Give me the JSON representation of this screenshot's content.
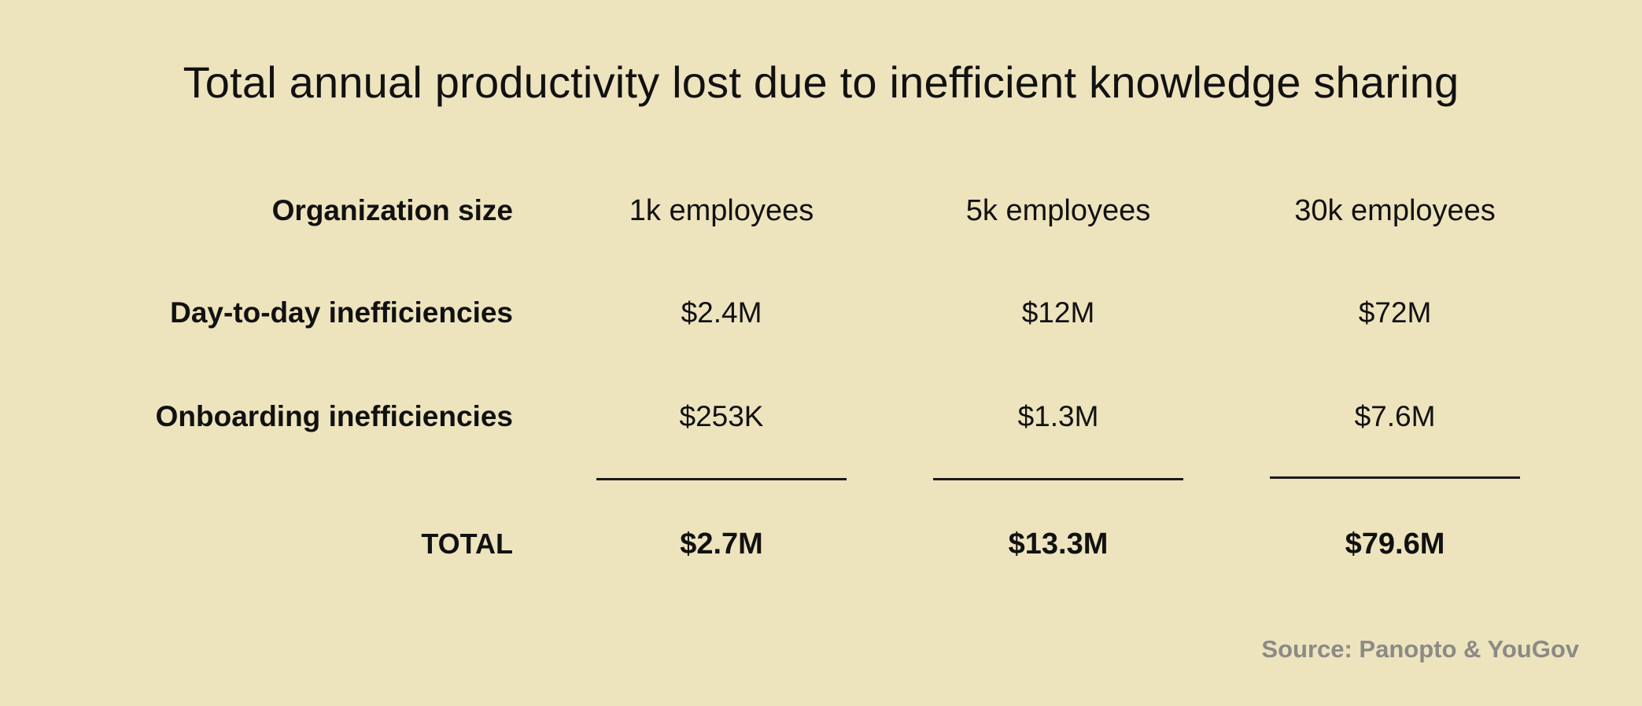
{
  "chart_data": {
    "type": "table",
    "title": "Total annual productivity lost due to inefficient knowledge sharing",
    "header": {
      "label": "Organization size",
      "columns": [
        "1k employees",
        "5k employees",
        "30k employees"
      ]
    },
    "rows": [
      {
        "label": "Day-to-day inefficiencies",
        "values": [
          "$2.4M",
          "$12M",
          "$72M"
        ]
      },
      {
        "label": "Onboarding inefficiencies",
        "values": [
          "$253K",
          "$1.3M",
          "$7.6M"
        ]
      }
    ],
    "total": {
      "label": "TOTAL",
      "values": [
        "$2.7M",
        "$13.3M",
        "$79.6M"
      ]
    },
    "source": "Source: Panopto & YouGov"
  },
  "colors": {
    "background": "#ede3bd",
    "text": "#111111",
    "source_text": "#8a8a86",
    "rule": "#1a1a1a"
  }
}
